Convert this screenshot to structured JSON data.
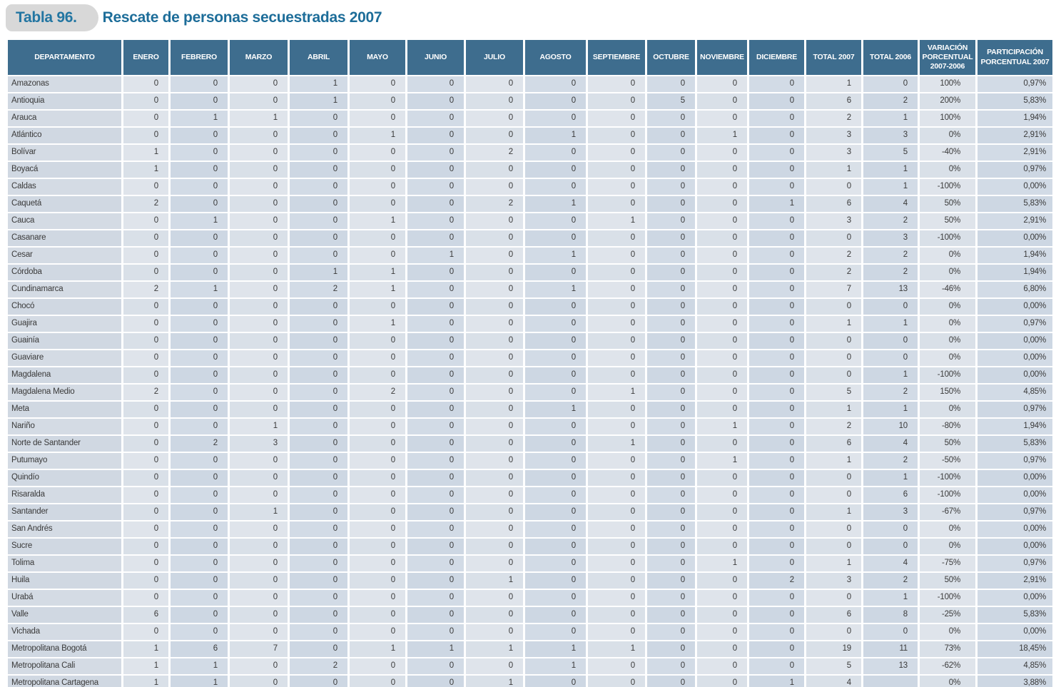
{
  "title": {
    "tab": "Tabla 96.",
    "text": "Rescate de personas secuestradas 2007"
  },
  "colors": {
    "header_bg": "#3e6d8e",
    "title_blue": "#1d6d99",
    "tab_gray": "#d8d8d8",
    "row_light": "#dfe4eb",
    "row_dark": "#cdd7e3"
  },
  "table": {
    "columns": [
      "DEPARTAMENTO",
      "ENERO",
      "FEBRERO",
      "MARZO",
      "ABRIL",
      "MAYO",
      "JUNIO",
      "JULIO",
      "AGOSTO",
      "SEPTIEMBRE",
      "OCTUBRE",
      "NOVIEMBRE",
      "DICIEMBRE",
      "TOTAL 2007",
      "TOTAL 2006",
      "VARIACIÓN\nPORCENTUAL\n2007-2006",
      "PARTICIPACIÓN\nPORCENTUAL 2007"
    ],
    "rows": [
      {
        "departamento": "Amazonas",
        "meses": [
          0,
          0,
          0,
          1,
          0,
          0,
          0,
          0,
          0,
          0,
          0,
          0
        ],
        "total_2007": "1",
        "total_2006": "0",
        "variacion": "100%",
        "participacion": "0,97%"
      },
      {
        "departamento": "Antioquia",
        "meses": [
          0,
          0,
          0,
          1,
          0,
          0,
          0,
          0,
          0,
          5,
          0,
          0
        ],
        "total_2007": "6",
        "total_2006": "2",
        "variacion": "200%",
        "participacion": "5,83%"
      },
      {
        "departamento": "Arauca",
        "meses": [
          0,
          1,
          1,
          0,
          0,
          0,
          0,
          0,
          0,
          0,
          0,
          0
        ],
        "total_2007": "2",
        "total_2006": "1",
        "variacion": "100%",
        "participacion": "1,94%"
      },
      {
        "departamento": "Atlántico",
        "meses": [
          0,
          0,
          0,
          0,
          1,
          0,
          0,
          1,
          0,
          0,
          1,
          0
        ],
        "total_2007": "3",
        "total_2006": "3",
        "variacion": "0%",
        "participacion": "2,91%"
      },
      {
        "departamento": "Bolívar",
        "meses": [
          1,
          0,
          0,
          0,
          0,
          0,
          2,
          0,
          0,
          0,
          0,
          0
        ],
        "total_2007": "3",
        "total_2006": "5",
        "variacion": "-40%",
        "participacion": "2,91%"
      },
      {
        "departamento": "Boyacá",
        "meses": [
          1,
          0,
          0,
          0,
          0,
          0,
          0,
          0,
          0,
          0,
          0,
          0
        ],
        "total_2007": "1",
        "total_2006": "1",
        "variacion": "0%",
        "participacion": "0,97%"
      },
      {
        "departamento": "Caldas",
        "meses": [
          0,
          0,
          0,
          0,
          0,
          0,
          0,
          0,
          0,
          0,
          0,
          0
        ],
        "total_2007": "0",
        "total_2006": "1",
        "variacion": "-100%",
        "participacion": "0,00%"
      },
      {
        "departamento": "Caquetá",
        "meses": [
          2,
          0,
          0,
          0,
          0,
          0,
          2,
          1,
          0,
          0,
          0,
          1
        ],
        "total_2007": "6",
        "total_2006": "4",
        "variacion": "50%",
        "participacion": "5,83%"
      },
      {
        "departamento": "Cauca",
        "meses": [
          0,
          1,
          0,
          0,
          1,
          0,
          0,
          0,
          1,
          0,
          0,
          0
        ],
        "total_2007": "3",
        "total_2006": "2",
        "variacion": "50%",
        "participacion": "2,91%"
      },
      {
        "departamento": "Casanare",
        "meses": [
          0,
          0,
          0,
          0,
          0,
          0,
          0,
          0,
          0,
          0,
          0,
          0
        ],
        "total_2007": "0",
        "total_2006": "3",
        "variacion": "-100%",
        "participacion": "0,00%"
      },
      {
        "departamento": "Cesar",
        "meses": [
          0,
          0,
          0,
          0,
          0,
          1,
          0,
          1,
          0,
          0,
          0,
          0
        ],
        "total_2007": "2",
        "total_2006": "2",
        "variacion": "0%",
        "participacion": "1,94%"
      },
      {
        "departamento": "Córdoba",
        "meses": [
          0,
          0,
          0,
          1,
          1,
          0,
          0,
          0,
          0,
          0,
          0,
          0
        ],
        "total_2007": "2",
        "total_2006": "2",
        "variacion": "0%",
        "participacion": "1,94%"
      },
      {
        "departamento": "Cundinamarca",
        "meses": [
          2,
          1,
          0,
          2,
          1,
          0,
          0,
          1,
          0,
          0,
          0,
          0
        ],
        "total_2007": "7",
        "total_2006": "13",
        "variacion": "-46%",
        "participacion": "6,80%"
      },
      {
        "departamento": "Chocó",
        "meses": [
          0,
          0,
          0,
          0,
          0,
          0,
          0,
          0,
          0,
          0,
          0,
          0
        ],
        "total_2007": "0",
        "total_2006": "0",
        "variacion": "0%",
        "participacion": "0,00%"
      },
      {
        "departamento": "Guajira",
        "meses": [
          0,
          0,
          0,
          0,
          1,
          0,
          0,
          0,
          0,
          0,
          0,
          0
        ],
        "total_2007": "1",
        "total_2006": "1",
        "variacion": "0%",
        "participacion": "0,97%"
      },
      {
        "departamento": "Guainía",
        "meses": [
          0,
          0,
          0,
          0,
          0,
          0,
          0,
          0,
          0,
          0,
          0,
          0
        ],
        "total_2007": "0",
        "total_2006": "0",
        "variacion": "0%",
        "participacion": "0,00%"
      },
      {
        "departamento": "Guaviare",
        "meses": [
          0,
          0,
          0,
          0,
          0,
          0,
          0,
          0,
          0,
          0,
          0,
          0
        ],
        "total_2007": "0",
        "total_2006": "0",
        "variacion": "0%",
        "participacion": "0,00%"
      },
      {
        "departamento": "Magdalena",
        "meses": [
          0,
          0,
          0,
          0,
          0,
          0,
          0,
          0,
          0,
          0,
          0,
          0
        ],
        "total_2007": "0",
        "total_2006": "1",
        "variacion": "-100%",
        "participacion": "0,00%"
      },
      {
        "departamento": "Magdalena Medio",
        "meses": [
          2,
          0,
          0,
          0,
          2,
          0,
          0,
          0,
          1,
          0,
          0,
          0
        ],
        "total_2007": "5",
        "total_2006": "2",
        "variacion": "150%",
        "participacion": "4,85%"
      },
      {
        "departamento": "Meta",
        "meses": [
          0,
          0,
          0,
          0,
          0,
          0,
          0,
          1,
          0,
          0,
          0,
          0
        ],
        "total_2007": "1",
        "total_2006": "1",
        "variacion": "0%",
        "participacion": "0,97%"
      },
      {
        "departamento": "Nariño",
        "meses": [
          0,
          0,
          1,
          0,
          0,
          0,
          0,
          0,
          0,
          0,
          1,
          0
        ],
        "total_2007": "2",
        "total_2006": "10",
        "variacion": "-80%",
        "participacion": "1,94%"
      },
      {
        "departamento": "Norte de Santander",
        "meses": [
          0,
          2,
          3,
          0,
          0,
          0,
          0,
          0,
          1,
          0,
          0,
          0
        ],
        "total_2007": "6",
        "total_2006": "4",
        "variacion": "50%",
        "participacion": "5,83%"
      },
      {
        "departamento": "Putumayo",
        "meses": [
          0,
          0,
          0,
          0,
          0,
          0,
          0,
          0,
          0,
          0,
          1,
          0
        ],
        "total_2007": "1",
        "total_2006": "2",
        "variacion": "-50%",
        "participacion": "0,97%"
      },
      {
        "departamento": "Quindío",
        "meses": [
          0,
          0,
          0,
          0,
          0,
          0,
          0,
          0,
          0,
          0,
          0,
          0
        ],
        "total_2007": "0",
        "total_2006": "1",
        "variacion": "-100%",
        "participacion": "0,00%"
      },
      {
        "departamento": "Risaralda",
        "meses": [
          0,
          0,
          0,
          0,
          0,
          0,
          0,
          0,
          0,
          0,
          0,
          0
        ],
        "total_2007": "0",
        "total_2006": "6",
        "variacion": "-100%",
        "participacion": "0,00%"
      },
      {
        "departamento": "Santander",
        "meses": [
          0,
          0,
          1,
          0,
          0,
          0,
          0,
          0,
          0,
          0,
          0,
          0
        ],
        "total_2007": "1",
        "total_2006": "3",
        "variacion": "-67%",
        "participacion": "0,97%"
      },
      {
        "departamento": "San Andrés",
        "meses": [
          0,
          0,
          0,
          0,
          0,
          0,
          0,
          0,
          0,
          0,
          0,
          0
        ],
        "total_2007": "0",
        "total_2006": "0",
        "variacion": "0%",
        "participacion": "0,00%"
      },
      {
        "departamento": "Sucre",
        "meses": [
          0,
          0,
          0,
          0,
          0,
          0,
          0,
          0,
          0,
          0,
          0,
          0
        ],
        "total_2007": "0",
        "total_2006": "0",
        "variacion": "0%",
        "participacion": "0,00%"
      },
      {
        "departamento": "Tolima",
        "meses": [
          0,
          0,
          0,
          0,
          0,
          0,
          0,
          0,
          0,
          0,
          1,
          0
        ],
        "total_2007": "1",
        "total_2006": "4",
        "variacion": "-75%",
        "participacion": "0,97%"
      },
      {
        "departamento": "Huila",
        "meses": [
          0,
          0,
          0,
          0,
          0,
          0,
          1,
          0,
          0,
          0,
          0,
          2
        ],
        "total_2007": "3",
        "total_2006": "2",
        "variacion": "50%",
        "participacion": "2,91%"
      },
      {
        "departamento": "Urabá",
        "meses": [
          0,
          0,
          0,
          0,
          0,
          0,
          0,
          0,
          0,
          0,
          0,
          0
        ],
        "total_2007": "0",
        "total_2006": "1",
        "variacion": "-100%",
        "participacion": "0,00%"
      },
      {
        "departamento": "Valle",
        "meses": [
          6,
          0,
          0,
          0,
          0,
          0,
          0,
          0,
          0,
          0,
          0,
          0
        ],
        "total_2007": "6",
        "total_2006": "8",
        "variacion": "-25%",
        "participacion": "5,83%"
      },
      {
        "departamento": "Vichada",
        "meses": [
          0,
          0,
          0,
          0,
          0,
          0,
          0,
          0,
          0,
          0,
          0,
          0
        ],
        "total_2007": "0",
        "total_2006": "0",
        "variacion": "0%",
        "participacion": "0,00%"
      },
      {
        "departamento": "Metropolitana Bogotá",
        "meses": [
          1,
          6,
          7,
          0,
          1,
          1,
          1,
          1,
          1,
          0,
          0,
          0
        ],
        "total_2007": "19",
        "total_2006": "11",
        "variacion": "73%",
        "participacion": "18,45%"
      },
      {
        "departamento": "Metropolitana Cali",
        "meses": [
          1,
          1,
          0,
          2,
          0,
          0,
          0,
          1,
          0,
          0,
          0,
          0
        ],
        "total_2007": "5",
        "total_2006": "13",
        "variacion": "-62%",
        "participacion": "4,85%"
      },
      {
        "departamento": "Metropolitana Cartagena",
        "meses": [
          1,
          1,
          0,
          0,
          0,
          0,
          1,
          0,
          0,
          0,
          0,
          1
        ],
        "total_2007": "4",
        "total_2006": "",
        "variacion": "0%",
        "participacion": "3,88%"
      }
    ]
  }
}
